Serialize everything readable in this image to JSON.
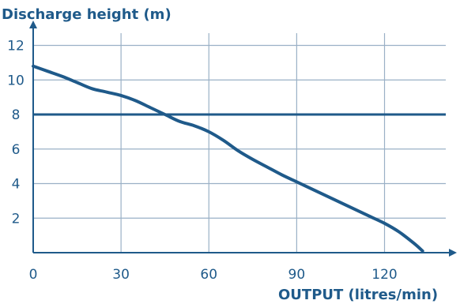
{
  "chart_data": {
    "type": "line",
    "ylabel": "Discharge height (m)",
    "xlabel": "OUTPUT (litres/min)",
    "xlim": [
      0,
      142
    ],
    "ylim": [
      0,
      12.8
    ],
    "grid": true,
    "x_ticks": [
      0,
      30,
      60,
      90,
      120
    ],
    "y_ticks": [
      2,
      4,
      6,
      8,
      10,
      12
    ],
    "x_tick_labels": [
      "0",
      "30",
      "60",
      "90",
      "120"
    ],
    "y_tick_labels": [
      "2",
      "4",
      "6",
      "8",
      "10",
      "12"
    ],
    "reference_line": {
      "y": 8
    },
    "series": [
      {
        "x": [
          0,
          5,
          10,
          15,
          20,
          25,
          30,
          35,
          40,
          45,
          50,
          55,
          60,
          65,
          70,
          75,
          80,
          85,
          90,
          95,
          100,
          105,
          110,
          115,
          120,
          125,
          130,
          133
        ],
        "y": [
          10.8,
          10.5,
          10.2,
          9.85,
          9.5,
          9.3,
          9.1,
          8.8,
          8.4,
          8.0,
          7.6,
          7.35,
          7.0,
          6.5,
          5.9,
          5.4,
          4.95,
          4.5,
          4.1,
          3.7,
          3.3,
          2.9,
          2.5,
          2.1,
          1.7,
          1.2,
          0.55,
          0.1
        ],
        "color": "#1f5a8a"
      }
    ],
    "colors": {
      "axis": "#1f5a8a",
      "grid": "#9ab0c6",
      "line": "#1f5a8a",
      "text": "#1f5a8a"
    }
  }
}
